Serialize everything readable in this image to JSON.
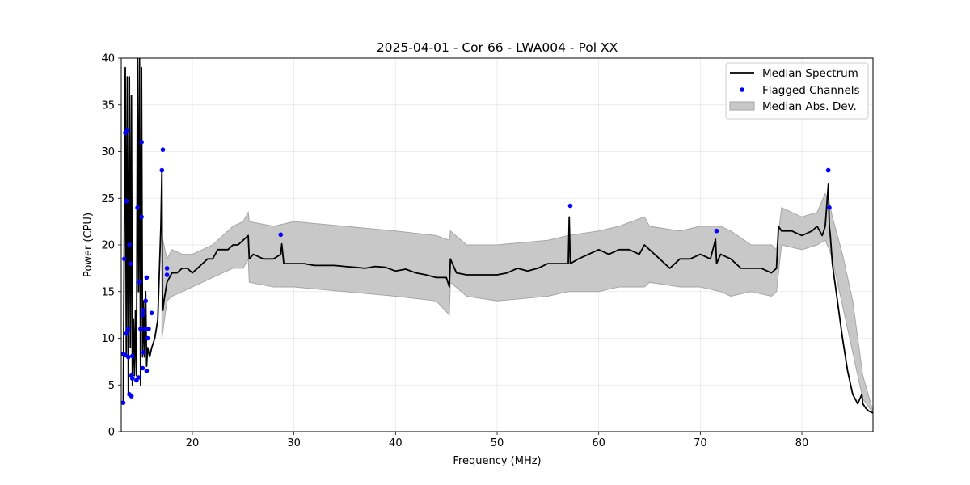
{
  "chart_data": {
    "type": "line",
    "title": "2025-04-01 - Cor 66 - LWA004 - Pol XX",
    "xlabel": "Frequency (MHz)",
    "ylabel": "Power (CPU)",
    "xlim": [
      13,
      87
    ],
    "ylim": [
      0,
      40
    ],
    "xticks": [
      20,
      30,
      40,
      50,
      60,
      70,
      80
    ],
    "yticks": [
      0,
      5,
      10,
      15,
      20,
      25,
      30,
      35,
      40
    ],
    "grid": true,
    "legend_position": "top-right",
    "legend": [
      "Median Spectrum",
      "Flagged Channels",
      "Median Abs. Dev."
    ],
    "colors": {
      "median": "#000000",
      "flagged": "#0000ff",
      "mad_fill": "#c8c8c8",
      "mad_edge": "#a6a6a6"
    },
    "series": [
      {
        "name": "Median Spectrum",
        "x": [
          13.2,
          13.4,
          13.5,
          13.6,
          13.7,
          13.8,
          13.9,
          14.0,
          14.1,
          14.2,
          14.3,
          14.4,
          14.5,
          14.6,
          14.7,
          14.8,
          14.9,
          15.0,
          15.1,
          15.2,
          15.3,
          15.4,
          15.5,
          15.6,
          15.8,
          16.0,
          16.3,
          16.6,
          16.9,
          17.0,
          17.05,
          17.1,
          17.2,
          17.5,
          18.0,
          18.5,
          19.0,
          19.5,
          20.0,
          20.5,
          21.0,
          21.5,
          22.0,
          22.5,
          23.0,
          23.5,
          24.0,
          24.5,
          25.0,
          25.5,
          25.6,
          26.0,
          27.0,
          28.0,
          28.7,
          28.8,
          29.0,
          30.0,
          31.0,
          32.0,
          33.0,
          34.0,
          35.0,
          36.0,
          37.0,
          38.0,
          39.0,
          40.0,
          41.0,
          42.0,
          43.0,
          44.0,
          45.0,
          45.3,
          45.4,
          46.0,
          47.0,
          48.0,
          49.0,
          50.0,
          51.0,
          52.0,
          53.0,
          54.0,
          55.0,
          56.0,
          57.0,
          57.1,
          57.2,
          58.0,
          59.0,
          60.0,
          61.0,
          62.0,
          63.0,
          64.0,
          64.5,
          65.0,
          66.0,
          67.0,
          68.0,
          69.0,
          70.0,
          71.0,
          71.5,
          71.6,
          72.0,
          73.0,
          74.0,
          75.0,
          76.0,
          77.0,
          77.5,
          77.7,
          78.0,
          79.0,
          80.0,
          81.0,
          81.5,
          82.0,
          82.3,
          82.6,
          82.7,
          82.8,
          83.0,
          83.5,
          84.0,
          84.5,
          85.0,
          85.5,
          85.9,
          86.0,
          86.3,
          86.6,
          87.0
        ],
        "y": [
          3.2,
          39,
          8,
          38,
          4,
          38,
          9,
          36,
          5,
          12,
          6,
          13,
          6,
          40,
          15,
          40,
          5,
          39,
          8,
          14,
          8,
          15,
          7,
          9,
          8,
          9,
          10,
          12,
          22,
          28,
          15,
          13,
          14,
          16,
          17,
          17,
          17.5,
          17.5,
          17,
          17.5,
          18,
          18.5,
          18.5,
          19.5,
          19.5,
          19.5,
          20,
          20,
          20.5,
          21,
          18.5,
          19,
          18.5,
          18.5,
          19,
          20.1,
          18,
          18,
          18,
          17.8,
          17.8,
          17.8,
          17.7,
          17.6,
          17.5,
          17.7,
          17.6,
          17.2,
          17.4,
          17,
          16.8,
          16.5,
          16.5,
          15.5,
          18.5,
          17,
          16.8,
          16.8,
          16.8,
          16.8,
          17,
          17.5,
          17.2,
          17.5,
          18,
          18,
          18,
          23,
          18,
          18.5,
          19,
          19.5,
          19,
          19.5,
          19.5,
          19,
          20,
          19.5,
          18.5,
          17.5,
          18.5,
          18.5,
          19,
          18.5,
          20.6,
          18,
          19,
          18.5,
          17.5,
          17.5,
          17.5,
          17,
          17.5,
          22,
          21.5,
          21.5,
          21,
          21.5,
          22,
          21,
          22,
          26.5,
          22,
          21,
          18,
          14,
          10,
          6.5,
          4,
          3,
          4,
          3,
          2.5,
          2.2,
          2
        ]
      },
      {
        "name": "Median Abs. Dev.",
        "x": [
          17.0,
          17.5,
          18.0,
          19.0,
          20.0,
          21.0,
          22.0,
          23.0,
          24.0,
          25.0,
          25.5,
          25.6,
          28.0,
          30.0,
          35.0,
          40.0,
          44.0,
          45.3,
          45.4,
          47.0,
          50.0,
          55.0,
          57.0,
          60.0,
          62.0,
          64.5,
          65.0,
          68.0,
          70.0,
          72.0,
          73.0,
          75.0,
          77.0,
          77.5,
          78.0,
          80.0,
          81.5,
          82.3,
          82.7,
          83.0,
          84.0,
          85.0,
          86.0,
          87.0
        ],
        "upper": [
          21,
          18.5,
          19.5,
          19,
          19,
          19.5,
          20,
          21,
          22,
          22.5,
          23.5,
          22.5,
          22,
          22.5,
          22,
          21.5,
          21,
          20.5,
          21.5,
          20,
          20,
          20.5,
          21,
          21.5,
          22,
          23,
          22,
          21.5,
          22,
          22,
          21.5,
          20,
          20,
          19.5,
          24,
          23,
          23.5,
          25.5,
          24.5,
          23,
          19,
          14,
          6,
          2.2
        ],
        "lower": [
          10,
          14,
          14.5,
          15,
          15.5,
          16,
          16.5,
          17,
          17.5,
          17.5,
          18.5,
          16,
          15.5,
          15.5,
          15,
          14.5,
          14,
          12.5,
          16,
          14.5,
          14,
          14.5,
          15,
          15,
          15.5,
          15.5,
          16,
          15.5,
          15.5,
          15,
          14.5,
          15,
          14.5,
          15,
          20,
          19.5,
          20,
          20.5,
          19.5,
          18.5,
          13.5,
          8.5,
          3.5,
          2
        ]
      },
      {
        "name": "Flagged Channels",
        "x": [
          13.2,
          13.2,
          13.3,
          13.4,
          13.4,
          13.5,
          13.5,
          13.6,
          13.7,
          13.7,
          13.8,
          13.8,
          13.9,
          14.0,
          14.0,
          14.1,
          14.1,
          14.5,
          14.6,
          14.7,
          14.8,
          14.9,
          15.0,
          15.0,
          15.1,
          15.1,
          15.2,
          15.2,
          15.3,
          15.4,
          15.5,
          15.5,
          15.6,
          15.7,
          16.0,
          17.0,
          17.1,
          17.5,
          17.5,
          28.7,
          57.2,
          71.6,
          82.6,
          82.7
        ],
        "y": [
          3.1,
          8.3,
          18.5,
          32,
          8.2,
          24.7,
          10.5,
          32.3,
          11,
          8,
          20,
          4,
          18,
          3.8,
          6,
          5.7,
          8.1,
          5.5,
          24,
          5.8,
          16,
          11,
          31,
          23,
          6.8,
          12.5,
          8.5,
          13,
          11,
          14,
          6.5,
          16.5,
          10,
          11,
          12.7,
          28,
          30.2,
          16.8,
          17.5,
          21.1,
          24.2,
          21.5,
          28,
          24
        ]
      }
    ]
  }
}
